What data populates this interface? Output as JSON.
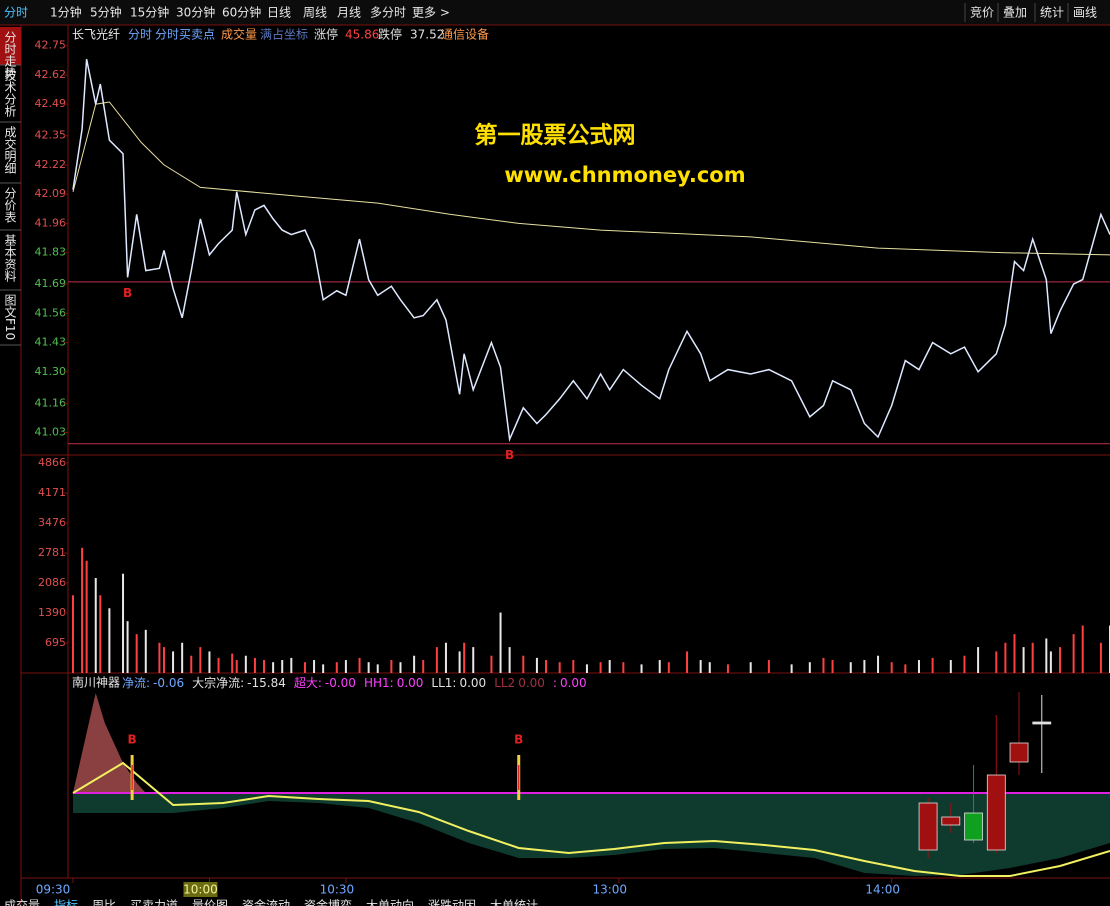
{
  "menu": {
    "left": [
      "分时",
      "1分钟",
      "5分钟",
      "15分钟",
      "30分钟",
      "60分钟",
      "日线",
      "周线",
      "月线",
      "多分时",
      "更多 >"
    ],
    "right": [
      "竞价",
      "叠加",
      "统计",
      "画线"
    ]
  },
  "sidebar": [
    "分时走势",
    "技术分析",
    "成交明细",
    "分价表",
    "基本资料",
    "图文F10"
  ],
  "info": {
    "stock": "长飞光纤",
    "items": [
      {
        "text": "分时",
        "color": "#6fa8ff"
      },
      {
        "text": "分时买卖点",
        "color": "#6fa8ff"
      },
      {
        "text": "成交量",
        "color": "#ff9a4a"
      },
      {
        "text": "满占坐标",
        "color": "#5a78c0"
      },
      {
        "text": "涨停",
        "color": "#e0e0e0"
      },
      {
        "text": "45.86",
        "color": "#ff4040"
      },
      {
        "text": "跌停",
        "color": "#e0e0e0"
      },
      {
        "text": "37.52",
        "color": "#e0e0e0"
      },
      {
        "text": "通信设备",
        "color": "#ff9a4a"
      }
    ]
  },
  "watermark": {
    "title": "第一股票公式网",
    "url": "www.chnmoney.com"
  },
  "price": {
    "xlim": [
      0,
      228
    ],
    "ylim": [
      40.93,
      42.82
    ],
    "yticks": [
      42.75,
      42.62,
      42.49,
      42.35,
      42.22,
      42.09,
      41.96,
      41.83,
      41.69,
      41.56,
      41.43,
      {
        "value": 41.3,
        "label": "41.30"
      },
      41.16,
      41.03
    ],
    "x": [
      0,
      2,
      3,
      5,
      6,
      8,
      11,
      12,
      14,
      16,
      19,
      20,
      22,
      24,
      26,
      28,
      30,
      32,
      35,
      36,
      38,
      40,
      42,
      44,
      46,
      48,
      51,
      53,
      55,
      58,
      60,
      63,
      65,
      67,
      70,
      72,
      75,
      77,
      80,
      82,
      85,
      86,
      88,
      92,
      94,
      96,
      99,
      102,
      104,
      107,
      110,
      113,
      116,
      118,
      121,
      125,
      129,
      131,
      135,
      138,
      140,
      144,
      149,
      153,
      158,
      162,
      165,
      167,
      171,
      174,
      177,
      180,
      183,
      186,
      189,
      193,
      196,
      199,
      203,
      205,
      207,
      209,
      211,
      214,
      215,
      217,
      220,
      222,
      226,
      228
    ],
    "values": [
      42.11,
      42.38,
      42.69,
      42.49,
      42.58,
      42.33,
      42.27,
      41.72,
      42.0,
      41.75,
      41.76,
      41.84,
      41.67,
      41.54,
      41.75,
      41.98,
      41.82,
      41.87,
      41.93,
      42.1,
      41.91,
      42.02,
      42.04,
      41.98,
      41.93,
      41.91,
      41.93,
      41.84,
      41.62,
      41.66,
      41.64,
      41.89,
      41.71,
      41.64,
      41.68,
      41.62,
      41.54,
      41.55,
      41.62,
      41.53,
      41.2,
      41.38,
      41.22,
      41.43,
      41.32,
      41.0,
      41.14,
      41.07,
      41.11,
      41.18,
      41.26,
      41.18,
      41.29,
      41.22,
      41.31,
      41.24,
      41.18,
      41.31,
      41.48,
      41.38,
      41.26,
      41.31,
      41.29,
      41.31,
      41.26,
      41.1,
      41.15,
      41.26,
      41.22,
      41.07,
      41.01,
      41.15,
      41.35,
      41.31,
      41.43,
      41.38,
      41.41,
      41.3,
      41.38,
      41.51,
      41.79,
      41.75,
      41.89,
      41.71,
      41.47,
      41.57,
      41.69,
      41.71,
      42.0,
      41.91
    ],
    "color": "#dfe9ff",
    "avg": {
      "x": [
        0,
        5,
        8,
        15,
        20,
        28,
        50,
        67,
        83,
        98,
        116,
        149,
        177,
        204,
        228
      ],
      "values": [
        42.1,
        42.49,
        42.5,
        42.32,
        42.22,
        42.12,
        42.08,
        42.05,
        42.0,
        41.96,
        41.93,
        41.9,
        41.85,
        41.83,
        41.82
      ],
      "color": "#e8e0a0"
    },
    "ref_lines": [
      41.7,
      40.98
    ],
    "signals": [
      {
        "x": 12,
        "label": "B"
      },
      {
        "x": 96,
        "label": "B"
      }
    ]
  },
  "volume": {
    "ylim": [
      0,
      5050
    ],
    "yticks": [
      4866,
      4171,
      3476,
      2781,
      2086,
      1390,
      695
    ],
    "values": [
      1800,
      2900,
      2600,
      2200,
      1800,
      1500,
      2300,
      1200,
      900,
      1000,
      700,
      600,
      500,
      700,
      400,
      600,
      500,
      350,
      450,
      300,
      400,
      350,
      300,
      250,
      300,
      350,
      250,
      300,
      200,
      250,
      300,
      350,
      250,
      200,
      300,
      250,
      400,
      300,
      600,
      700,
      500,
      700,
      600,
      400,
      1400,
      600,
      400,
      350,
      300,
      250,
      300,
      200,
      250,
      300,
      250,
      200,
      300,
      250,
      500,
      300,
      250,
      200,
      250,
      300,
      200,
      250,
      350,
      300,
      250,
      300,
      400,
      250,
      200,
      300,
      350,
      300,
      400,
      600,
      500,
      700,
      900,
      600,
      700,
      800,
      500,
      600,
      900,
      1100,
      700,
      1100
    ],
    "up_color": "#ff4040",
    "down_color": "#e8e8e8"
  },
  "indicator": {
    "name": "南川神器",
    "items": [
      {
        "label": "净流:",
        "value": "-0.06",
        "color": "#6fa8ff"
      },
      {
        "label": "大宗净流:",
        "value": "-15.84",
        "color": "#e0e0e0"
      },
      {
        "label": "超大:",
        "value": "-0.00",
        "color": "#ff40ff"
      },
      {
        "label": "HH1:",
        "value": "0.00",
        "color": "#ff40ff"
      },
      {
        "label": "LL1:",
        "value": "0.00",
        "color": "#e0e0e0"
      },
      {
        "label": "LL2",
        "value": "0.00",
        "color": "#a03040"
      },
      {
        "label": ":",
        "value": "0.00",
        "color": "#ff40ff"
      }
    ],
    "ylim": [
      -8.5,
      10.3
    ],
    "inflow": {
      "x": [
        0,
        3,
        5,
        7,
        9,
        11,
        14,
        16
      ],
      "values": [
        0,
        6,
        10,
        7,
        5,
        3,
        1,
        0
      ],
      "color": "#8a4040"
    },
    "area": {
      "x": [
        0,
        11,
        22,
        33,
        43,
        54,
        65,
        76,
        87,
        98,
        109,
        119,
        130,
        141,
        152,
        163,
        174,
        185,
        195,
        206,
        217,
        228
      ],
      "values": [
        -2,
        -2,
        -2,
        -1.5,
        -0.8,
        -1,
        -1.5,
        -3,
        -5,
        -6.5,
        -6.5,
        -6.2,
        -5.6,
        -5.5,
        -6,
        -6.5,
        -8,
        -8.3,
        -8.2,
        -7.5,
        -6.5,
        -5
      ],
      "color": "#0f3a2e"
    },
    "line": {
      "x": [
        0,
        11,
        22,
        33,
        43,
        54,
        65,
        76,
        87,
        98,
        109,
        119,
        130,
        141,
        152,
        163,
        174,
        185,
        195,
        206,
        217,
        228
      ],
      "values": [
        0,
        3,
        -1.2,
        -1,
        -0.3,
        -0.6,
        -0.8,
        -1.9,
        -3.8,
        -5.5,
        -6,
        -5.6,
        -5,
        -4.8,
        -5.2,
        -5.7,
        -6.8,
        -7.8,
        -8.3,
        -8.3,
        -7.3,
        -5.8
      ],
      "color": "#f0f060"
    },
    "zero_color": "#e020e0",
    "candles": [
      {
        "x": 188,
        "open": -1.0,
        "close": -5.7,
        "high": -0.5,
        "low": -6.5,
        "color": "#a01010"
      },
      {
        "x": 193,
        "open": -2.4,
        "close": -3.2,
        "high": -1.0,
        "low": -4.0,
        "color": "#a01010"
      },
      {
        "x": 198,
        "open": -2.0,
        "close": -4.7,
        "high": 2.8,
        "low": -5.0,
        "color": "#10a020"
      },
      {
        "x": 203,
        "open": 1.8,
        "close": -5.7,
        "high": 7.8,
        "low": -6.0,
        "color": "#a01010"
      },
      {
        "x": 208,
        "open": 5.0,
        "close": 3.1,
        "high": 10.1,
        "low": 1.8,
        "color": "#a01010"
      },
      {
        "x": 213,
        "open": 7.1,
        "close": 6.9,
        "high": 9.8,
        "low": 2.0,
        "color": "#e0e0e0"
      }
    ],
    "signals": [
      {
        "x": 13,
        "label": "B"
      },
      {
        "x": 98,
        "label": "B"
      }
    ]
  },
  "xticks": [
    {
      "value": 0,
      "label": "09:30"
    },
    {
      "value": 30,
      "label": "10:00"
    },
    {
      "value": 60,
      "label": "10:30"
    },
    {
      "value": 120,
      "label": "13:00"
    },
    {
      "value": 180,
      "label": "14:00"
    }
  ],
  "bottom_tabs": [
    "成交量",
    "指标",
    "周比",
    "买卖力道",
    "量价图",
    "资金流动",
    "资金博弈",
    "大单动向",
    "涨跌动因",
    "大单统计"
  ]
}
